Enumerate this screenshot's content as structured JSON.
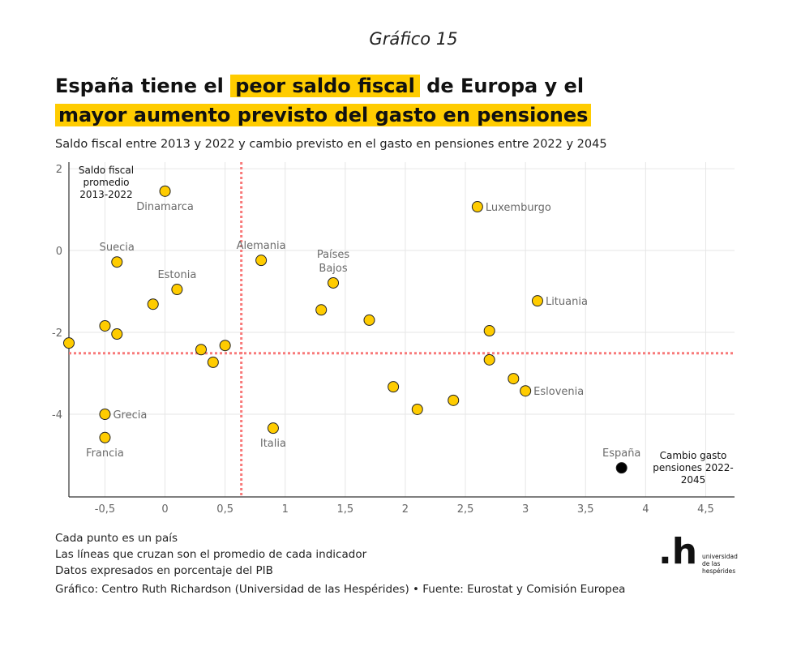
{
  "kicker": "Gráfico 15",
  "title": {
    "l1_a": "España tiene el ",
    "l1_hl": "peor saldo fiscal",
    "l1_b": " de Europa y el",
    "l2_hl": "mayor aumento previsto del gasto en pensiones"
  },
  "subtitle": "Saldo fiscal entre 2013 y 2022 y cambio previsto en el gasto en pensiones entre 2022 y 2045",
  "notes": [
    "Cada punto es un país",
    "Las líneas que cruzan son el promedio de cada indicador",
    "Datos expresados en porcentaje del PIB"
  ],
  "source": "Gráfico: Centro Ruth Richardson (Universidad de las Hespérides) • Fuente: Eurostat y Comisión Europea",
  "logo": {
    "mark": ".h",
    "lines": [
      "universidad",
      "de las",
      "hespérides"
    ]
  },
  "colors": {
    "point": "#FFCC00",
    "highlight_point": "#000000",
    "mean_line": "#F87A7A",
    "grid": "#E6E6E6",
    "title_highlight": "#FFCC00"
  },
  "chart_data": {
    "type": "scatter",
    "title": "España tiene el peor saldo fiscal de Europa y el mayor aumento previsto del gasto en pensiones",
    "xlabel": "Cambio gasto pensiones 2022-2045",
    "ylabel": "Saldo fiscal promedio 2013-2022",
    "xlabel_lines": [
      "Cambio gasto",
      "pensiones 2022-",
      "2045"
    ],
    "ylabel_lines": [
      "Saldo fiscal",
      "promedio",
      "2013-2022"
    ],
    "xlim": [
      -0.8,
      4.74
    ],
    "ylim": [
      -6.02,
      2.16
    ],
    "xticks": [
      -0.5,
      0,
      0.5,
      1,
      1.5,
      2,
      2.5,
      3,
      3.5,
      4,
      4.5
    ],
    "xtick_labels": [
      "-0,5",
      "0",
      "0,5",
      "1",
      "1,5",
      "2",
      "2,5",
      "3",
      "3,5",
      "4",
      "4,5"
    ],
    "yticks": [
      2,
      0,
      -2,
      -4
    ],
    "ytick_labels": [
      "2",
      "0",
      "-2",
      "-4"
    ],
    "grid": true,
    "mean_x": 0.635,
    "mean_y": -2.51,
    "points": [
      {
        "label": "Dinamarca",
        "x": 0,
        "y": 1.45,
        "pos": "below"
      },
      {
        "label": "Luxemburgo",
        "x": 2.6,
        "y": 1.07,
        "pos": "right"
      },
      {
        "label": "Suecia",
        "x": -0.4,
        "y": -0.28,
        "pos": "above"
      },
      {
        "label": "Alemania",
        "x": 0.8,
        "y": -0.24,
        "pos": "above"
      },
      {
        "label": "Países Bajos",
        "x": 1.4,
        "y": -0.79,
        "pos": "above2"
      },
      {
        "label": "Estonia",
        "x": 0.1,
        "y": -0.95,
        "pos": "above"
      },
      {
        "label": "",
        "x": -0.1,
        "y": -1.31
      },
      {
        "label": "Lituania",
        "x": 3.1,
        "y": -1.23,
        "pos": "right"
      },
      {
        "label": "",
        "x": 1.3,
        "y": -1.45
      },
      {
        "label": "",
        "x": 1.7,
        "y": -1.7
      },
      {
        "label": "",
        "x": -0.5,
        "y": -1.84
      },
      {
        "label": "",
        "x": -0.4,
        "y": -2.04
      },
      {
        "label": "",
        "x": 2.7,
        "y": -1.96
      },
      {
        "label": "",
        "x": -0.8,
        "y": -2.26
      },
      {
        "label": "",
        "x": 0.3,
        "y": -2.42
      },
      {
        "label": "",
        "x": 0.5,
        "y": -2.32
      },
      {
        "label": "",
        "x": 0.4,
        "y": -2.73
      },
      {
        "label": "",
        "x": 2.7,
        "y": -2.67
      },
      {
        "label": "",
        "x": 2.9,
        "y": -3.13
      },
      {
        "label": "Eslovenia",
        "x": 3.0,
        "y": -3.43,
        "pos": "right"
      },
      {
        "label": "",
        "x": 1.9,
        "y": -3.33
      },
      {
        "label": "",
        "x": 2.4,
        "y": -3.66
      },
      {
        "label": "",
        "x": 2.1,
        "y": -3.88
      },
      {
        "label": "Grecia",
        "x": -0.5,
        "y": -4.0,
        "pos": "right"
      },
      {
        "label": "Italia",
        "x": 0.9,
        "y": -4.34,
        "pos": "below"
      },
      {
        "label": "Francia",
        "x": -0.5,
        "y": -4.57,
        "pos": "below"
      },
      {
        "label": "España",
        "x": 3.8,
        "y": -5.31,
        "pos": "above",
        "highlight": true
      }
    ]
  }
}
